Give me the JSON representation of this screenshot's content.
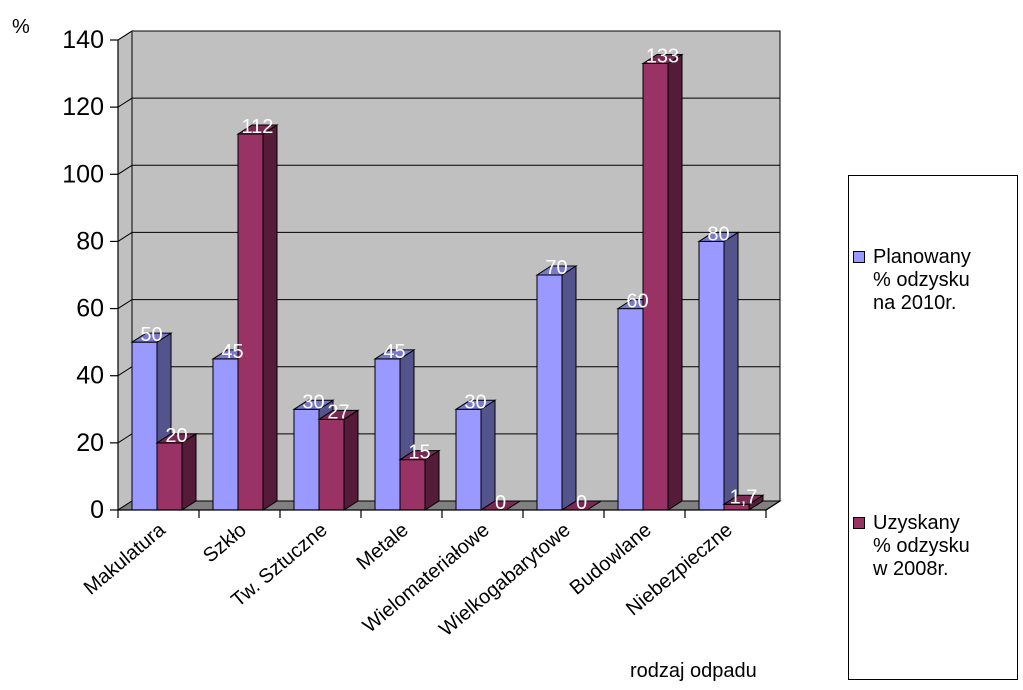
{
  "chart_data": {
    "type": "bar",
    "style": "3d-clustered-column",
    "y_unit_label": "%",
    "xlabel": "rodzaj odpadu",
    "ylim": [
      0,
      140
    ],
    "y_ticks": [
      0,
      20,
      40,
      60,
      80,
      100,
      120,
      140
    ],
    "grid": true,
    "legend_position": "right",
    "categories": [
      "Makulatura",
      "Szkło",
      "Tw. Sztuczne",
      "Metale",
      "Wielomateriałowe",
      "Wielkogabarytowe",
      "Budowlane",
      "Niebezpieczne"
    ],
    "series": [
      {
        "name": "Planowany\n% odzysku\nna 2010r.",
        "color": "#9999ff",
        "values": [
          50,
          45,
          30,
          45,
          30,
          70,
          60,
          80
        ],
        "labels": [
          "50",
          "45",
          "30",
          "45",
          "30",
          "70",
          "60",
          "80"
        ]
      },
      {
        "name": "Uzyskany\n% odzysku\nw 2008r.",
        "color": "#993366",
        "values": [
          20,
          112,
          27,
          15,
          0,
          0,
          133,
          1.7
        ],
        "labels": [
          "20",
          "112",
          "27",
          "15",
          "0",
          "0",
          "133",
          "1,7"
        ]
      }
    ],
    "colors": {
      "plot_background": "#c0c0c0",
      "floor": "#808080",
      "gridline": "#000000"
    }
  }
}
